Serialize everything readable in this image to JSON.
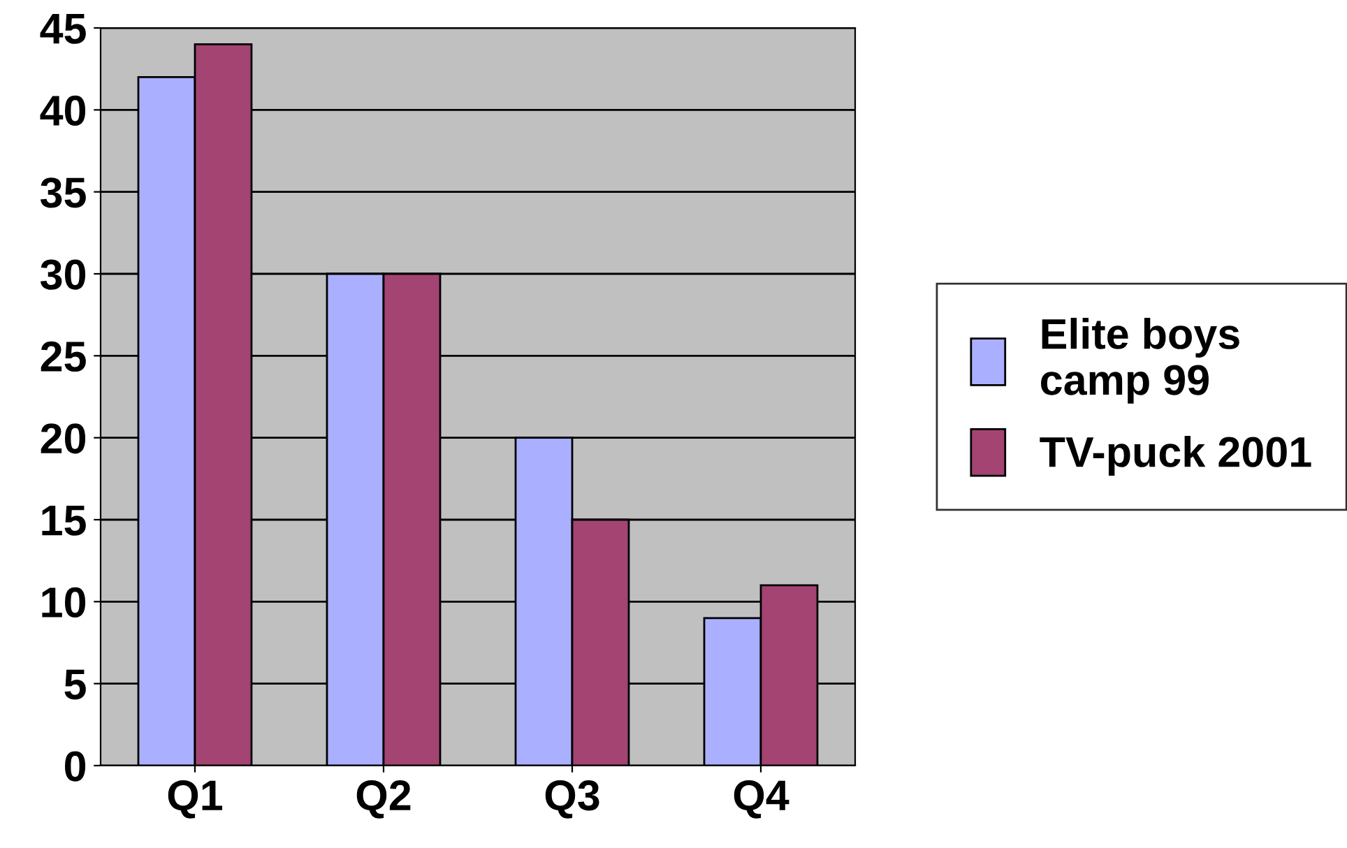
{
  "chart_data": {
    "type": "bar",
    "categories": [
      "Q1",
      "Q2",
      "Q3",
      "Q4"
    ],
    "series": [
      {
        "name": "Elite boys\ncamp 99",
        "color": "#aab0ff",
        "values": [
          42,
          30,
          20,
          9
        ]
      },
      {
        "name": "TV-puck 2001",
        "color": "#a34472",
        "values": [
          44,
          30,
          15,
          11
        ]
      }
    ],
    "ylim": [
      0,
      45
    ],
    "yticks": [
      0,
      5,
      10,
      15,
      20,
      25,
      30,
      35,
      40,
      45
    ],
    "grid": "y",
    "legend": "right"
  }
}
